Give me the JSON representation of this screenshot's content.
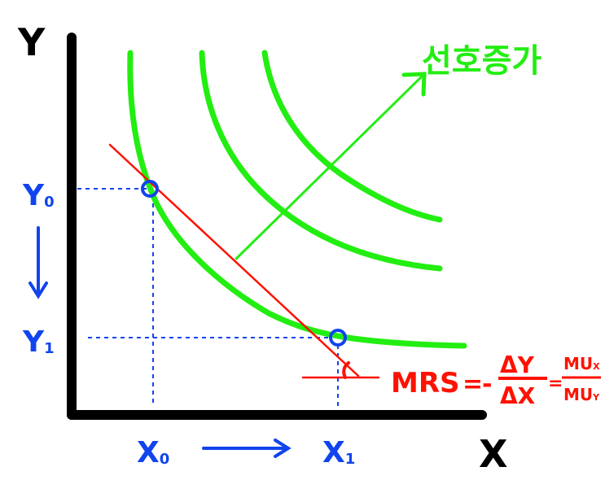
{
  "colors": {
    "axis": "#000000",
    "curves": "#22ee11",
    "budget": "#ff1100",
    "points": "#1144ee"
  },
  "axes": {
    "y_label": "Y",
    "x_label": "X"
  },
  "y_marks": {
    "y0_main": "Y",
    "y0_sub": "0",
    "y1_main": "Y",
    "y1_sub": "1"
  },
  "x_marks": {
    "x0_main": "X",
    "x0_sub": "0",
    "x1_main": "X",
    "x1_sub": "1"
  },
  "preference_label": "선호증가",
  "formula": {
    "lhs": "MRS",
    "equals": "=",
    "minus": "-",
    "num1": "ΔY",
    "den1": "ΔX",
    "equals2": "=",
    "num2_main": "MU",
    "num2_sub": "X",
    "den2_main": "MU",
    "den2_sub": "Y"
  },
  "icons": {
    "y_change_arrow": "arrow-down-icon",
    "x_change_arrow": "arrow-right-icon",
    "preference_arrow": "arrow-up-right-icon"
  }
}
